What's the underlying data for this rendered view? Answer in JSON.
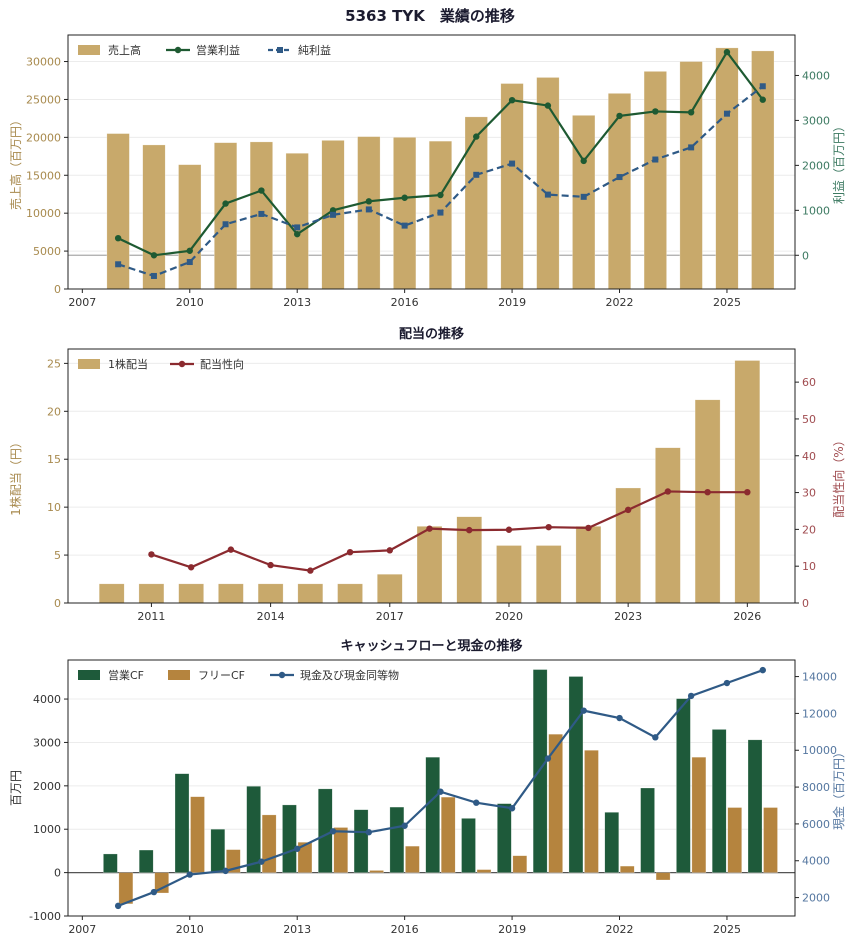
{
  "title": "5363 TYK　業績の推移",
  "colors": {
    "sales": "#c8a96b",
    "op": "#1e5a32",
    "net": "#2f5a86",
    "div": "#c8a96b",
    "payout": "#8b2a2f",
    "ocf": "#1e5a3a",
    "fcf": "#b5843e",
    "cash": "#2f5a86"
  },
  "chart_data": [
    {
      "type": "bar",
      "title": "",
      "ylabel": "売上高（百万円）",
      "y2label": "利益（百万円）",
      "xlim": [
        2006.6,
        2026.9
      ],
      "ylim": [
        0,
        33500
      ],
      "y2lim": [
        -750,
        4900
      ],
      "xticks": [
        2007,
        2010,
        2013,
        2016,
        2019,
        2022,
        2025
      ],
      "yticks": [
        0,
        5000,
        10000,
        15000,
        20000,
        25000,
        30000
      ],
      "y2ticks": [
        0,
        1000,
        2000,
        3000,
        4000
      ],
      "legend": "top-left",
      "x": [
        2008,
        2009,
        2010,
        2011,
        2012,
        2013,
        2014,
        2015,
        2016,
        2017,
        2018,
        2019,
        2020,
        2021,
        2022,
        2023,
        2024,
        2025,
        2026
      ],
      "series": [
        {
          "name": "売上高",
          "kind": "bar",
          "axis": "left",
          "values": [
            20500,
            19000,
            16400,
            19300,
            19400,
            17900,
            19600,
            20100,
            20000,
            19500,
            22700,
            27100,
            27900,
            22900,
            25800,
            28700,
            30000,
            31800,
            31400
          ]
        },
        {
          "name": "営業利益",
          "kind": "line",
          "axis": "right",
          "values": [
            380,
            0,
            100,
            1150,
            1440,
            470,
            1000,
            1200,
            1280,
            1340,
            2640,
            3450,
            3330,
            2100,
            3100,
            3200,
            3180,
            4520,
            3460
          ]
        },
        {
          "name": "純利益",
          "kind": "line-dashed",
          "axis": "right",
          "values": [
            -200,
            -460,
            -150,
            690,
            920,
            620,
            900,
            1020,
            660,
            950,
            1790,
            2040,
            1350,
            1300,
            1740,
            2130,
            2400,
            3150,
            3760
          ]
        }
      ]
    },
    {
      "type": "bar",
      "title": "配当の推移",
      "ylabel": "1株配当（円）",
      "y2label": "配当性向（%）",
      "xlim": [
        2008.9,
        2027.2
      ],
      "ylim": [
        0,
        26.5
      ],
      "y2lim": [
        0,
        69
      ],
      "xticks": [
        2011,
        2014,
        2017,
        2020,
        2023,
        2026
      ],
      "yticks": [
        0,
        5,
        10,
        15,
        20,
        25
      ],
      "y2ticks": [
        0,
        10,
        20,
        30,
        40,
        50,
        60
      ],
      "legend": "top-left",
      "x": [
        2010,
        2011,
        2012,
        2013,
        2014,
        2015,
        2016,
        2017,
        2018,
        2019,
        2020,
        2021,
        2022,
        2023,
        2024,
        2025,
        2026
      ],
      "series": [
        {
          "name": "1株配当",
          "kind": "bar",
          "axis": "left",
          "values": [
            2,
            2,
            2,
            2,
            2,
            2,
            2,
            3,
            8,
            9,
            6,
            6,
            8,
            12,
            16.2,
            21.2,
            25.3
          ]
        },
        {
          "name": "配当性向",
          "kind": "line",
          "axis": "right",
          "values": [
            null,
            13.2,
            9.7,
            14.5,
            10.3,
            8.8,
            13.8,
            14.3,
            20.2,
            19.8,
            19.9,
            20.6,
            20.4,
            25.3,
            30.3,
            30.1,
            30.1
          ]
        }
      ]
    },
    {
      "type": "bar",
      "title": "キャッシュフローと現金の推移",
      "ylabel": "百万円",
      "y2label": "現金（百万円）",
      "xlim": [
        2006.6,
        2026.9
      ],
      "ylim": [
        -1000,
        4900
      ],
      "y2lim": [
        1000,
        14900
      ],
      "xticks": [
        2007,
        2010,
        2013,
        2016,
        2019,
        2022,
        2025
      ],
      "yticks": [
        -1000,
        0,
        1000,
        2000,
        3000,
        4000
      ],
      "y2ticks": [
        2000,
        4000,
        6000,
        8000,
        10000,
        12000,
        14000
      ],
      "legend": "top-left",
      "x": [
        2008,
        2009,
        2010,
        2011,
        2012,
        2013,
        2014,
        2015,
        2016,
        2017,
        2018,
        2019,
        2020,
        2021,
        2022,
        2023,
        2024,
        2025,
        2026
      ],
      "series": [
        {
          "name": "営業CF",
          "kind": "bar",
          "axis": "left",
          "values": [
            430,
            520,
            2280,
            1000,
            1990,
            1560,
            1930,
            1450,
            1510,
            2660,
            1250,
            1590,
            4680,
            4520,
            1390,
            1950,
            4010,
            3300,
            3060
          ]
        },
        {
          "name": "フリーCF",
          "kind": "bar",
          "axis": "left",
          "values": [
            -720,
            -470,
            1750,
            530,
            1330,
            700,
            1040,
            50,
            610,
            1740,
            70,
            390,
            3190,
            2820,
            150,
            -170,
            2660,
            1500,
            1500
          ]
        },
        {
          "name": "現金及び現金同等物",
          "kind": "line",
          "axis": "right",
          "values": [
            1550,
            2300,
            3250,
            3450,
            3950,
            4650,
            5600,
            5550,
            5900,
            7750,
            7150,
            6850,
            9550,
            12150,
            11750,
            10700,
            12950,
            13650,
            14350
          ]
        }
      ]
    }
  ]
}
